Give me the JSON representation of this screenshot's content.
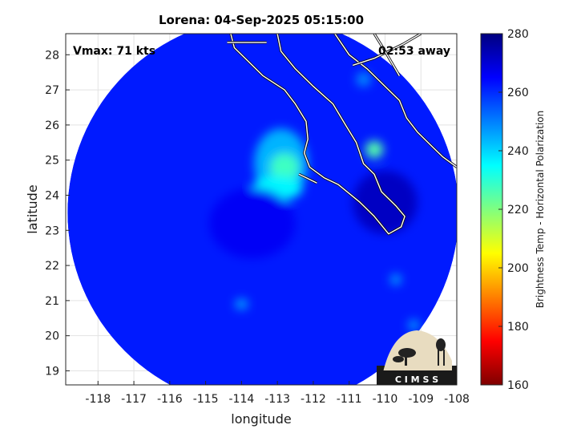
{
  "chart_data": {
    "type": "heatmap",
    "title": "Lorena: 04-Sep-2025 05:15:00",
    "xlabel": "longitude",
    "ylabel": "latitude",
    "xlim": [
      -118.9,
      -108
    ],
    "ylim": [
      18.6,
      28.6
    ],
    "xticks": [
      -118,
      -117,
      -116,
      -115,
      -114,
      -113,
      -112,
      -111,
      -110,
      -109,
      -108
    ],
    "yticks": [
      19,
      20,
      21,
      22,
      23,
      24,
      25,
      26,
      27,
      28
    ],
    "xtick_labels": [
      "-118",
      "-117",
      "-116",
      "-115",
      "-114",
      "-113",
      "-112",
      "-111",
      "-110",
      "-109",
      "-108"
    ],
    "ytick_labels": [
      "19",
      "20",
      "21",
      "22",
      "23",
      "24",
      "25",
      "26",
      "27",
      "28"
    ],
    "grid": true,
    "annotations": {
      "vmax": "Vmax: 71 kts",
      "time_away": "02:53 away"
    },
    "colorbar": {
      "label": "Brightness Temp - Horizontal Polarization",
      "range": [
        160,
        280
      ],
      "ticks": [
        280,
        260,
        240,
        220,
        200,
        180,
        160
      ],
      "tick_labels": [
        "280",
        "260",
        "240",
        "220",
        "200",
        "180",
        "160"
      ],
      "colormap": "jet"
    },
    "swath": {
      "center_lon": -113.4,
      "center_lat": 23.5,
      "radius_deg": 5.45
    },
    "background_value": 262,
    "features": [
      {
        "lon": -112.9,
        "lat": 24.9,
        "rx": 0.75,
        "ry": 1.0,
        "value": 244
      },
      {
        "lon": -112.8,
        "lat": 24.8,
        "rx": 0.4,
        "ry": 0.4,
        "value": 228
      },
      {
        "lon": -113.0,
        "lat": 24.2,
        "rx": 0.7,
        "ry": 0.35,
        "value": 236
      },
      {
        "lon": -110.3,
        "lat": 25.3,
        "rx": 0.25,
        "ry": 0.25,
        "value": 225
      },
      {
        "lon": -110.0,
        "lat": 23.8,
        "rx": 0.9,
        "ry": 0.9,
        "value": 272
      },
      {
        "lon": -113.7,
        "lat": 23.2,
        "rx": 1.2,
        "ry": 1.0,
        "value": 266
      },
      {
        "lon": -114.0,
        "lat": 20.9,
        "rx": 0.18,
        "ry": 0.15,
        "value": 245
      },
      {
        "lon": -109.7,
        "lat": 21.6,
        "rx": 0.15,
        "ry": 0.15,
        "value": 245
      },
      {
        "lon": -109.2,
        "lat": 20.3,
        "rx": 0.15,
        "ry": 0.15,
        "value": 245
      },
      {
        "lon": -110.6,
        "lat": 27.3,
        "rx": 0.2,
        "ry": 0.2,
        "value": 248
      }
    ],
    "coastlines": [
      [
        [
          -114.3,
          28.6
        ],
        [
          -114.2,
          28.2
        ],
        [
          -113.8,
          27.8
        ],
        [
          -113.4,
          27.4
        ],
        [
          -112.8,
          27.0
        ],
        [
          -112.5,
          26.6
        ],
        [
          -112.2,
          26.1
        ],
        [
          -112.15,
          25.6
        ],
        [
          -112.25,
          25.2
        ],
        [
          -112.1,
          24.8
        ],
        [
          -111.7,
          24.5
        ],
        [
          -111.3,
          24.3
        ],
        [
          -110.7,
          23.8
        ],
        [
          -110.3,
          23.4
        ],
        [
          -109.9,
          22.9
        ],
        [
          -109.55,
          23.1
        ],
        [
          -109.45,
          23.4
        ],
        [
          -109.7,
          23.7
        ],
        [
          -110.1,
          24.1
        ],
        [
          -110.3,
          24.6
        ],
        [
          -110.6,
          24.9
        ],
        [
          -110.8,
          25.5
        ],
        [
          -111.1,
          26.0
        ],
        [
          -111.45,
          26.6
        ],
        [
          -112.0,
          27.1
        ],
        [
          -112.5,
          27.6
        ],
        [
          -112.9,
          28.1
        ],
        [
          -113.0,
          28.6
        ]
      ],
      [
        [
          -114.4,
          28.35
        ],
        [
          -113.3,
          28.35
        ]
      ],
      [
        [
          -111.4,
          28.6
        ],
        [
          -111.0,
          28.0
        ],
        [
          -110.5,
          27.6
        ],
        [
          -110.0,
          27.1
        ],
        [
          -109.6,
          26.7
        ],
        [
          -109.4,
          26.2
        ],
        [
          -109.1,
          25.8
        ],
        [
          -108.7,
          25.4
        ],
        [
          -108.4,
          25.1
        ],
        [
          -108.0,
          24.8
        ]
      ],
      [
        [
          -112.4,
          24.6
        ],
        [
          -112.2,
          24.5
        ],
        [
          -111.9,
          24.35
        ]
      ],
      [
        [
          -110.9,
          27.7
        ],
        [
          -110.3,
          27.9
        ],
        [
          -109.5,
          28.3
        ],
        [
          -109.0,
          28.6
        ]
      ],
      [
        [
          -110.3,
          28.6
        ],
        [
          -110.0,
          28.1
        ],
        [
          -109.6,
          27.4
        ]
      ]
    ]
  },
  "logo": {
    "text": "C I M S S"
  }
}
